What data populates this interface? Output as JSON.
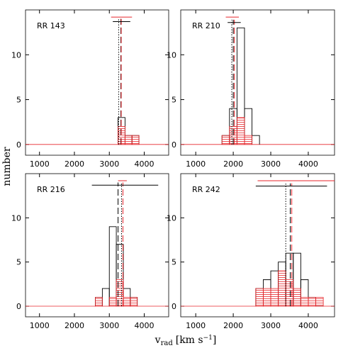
{
  "ylabel": "number",
  "xlabel": [
    "v",
    "rad",
    "[km s",
    "−1",
    "]"
  ],
  "chart_data": [
    {
      "type": "histogram",
      "title": "RR 143",
      "bins": [
        3250,
        3450,
        3650,
        3850
      ],
      "series": [
        {
          "color": "#000000",
          "values": [
            3,
            1,
            1
          ]
        },
        {
          "color": "#e8262b",
          "values": [
            2,
            1,
            1
          ],
          "hatch": true
        }
      ],
      "lines": [
        {
          "value": 3330,
          "color": "#000000",
          "style": "dashed"
        },
        {
          "value": 3340,
          "color": "#e8262b",
          "style": "dashed"
        },
        {
          "value": 3270,
          "color": "#000000",
          "style": "dotted"
        }
      ],
      "ranges": [
        {
          "low": 3100,
          "high": 3600,
          "y": 13.7,
          "color": "#000000"
        },
        {
          "low": 3050,
          "high": 3650,
          "y": 14.2,
          "color": "#e8262b"
        }
      ],
      "xlim": [
        600,
        4700
      ],
      "ylim": [
        -1.2,
        15
      ],
      "xticks": [
        1000,
        2000,
        3000,
        4000
      ],
      "yticks": [
        0,
        5,
        10
      ]
    },
    {
      "type": "histogram",
      "title": "RR 210",
      "bins": [
        1700,
        1900,
        2100,
        2300,
        2500,
        2700
      ],
      "series": [
        {
          "color": "#000000",
          "values": [
            1,
            4,
            13,
            4,
            1
          ]
        },
        {
          "color": "#e8262b",
          "values": [
            1,
            2,
            3,
            1,
            0
          ],
          "hatch": true
        }
      ],
      "lines": [
        {
          "value": 2000,
          "color": "#000000",
          "style": "dashed"
        },
        {
          "value": 2030,
          "color": "#e8262b",
          "style": "dashed"
        },
        {
          "value": 1960,
          "color": "#000000",
          "style": "dotted"
        }
      ],
      "ranges": [
        {
          "low": 1850,
          "high": 2200,
          "y": 13.6,
          "color": "#000000"
        },
        {
          "low": 1800,
          "high": 2150,
          "y": 14.2,
          "color": "#e8262b"
        }
      ],
      "xlim": [
        600,
        4700
      ],
      "ylim": [
        -1.2,
        15
      ],
      "xticks": [
        1000,
        2000,
        3000,
        4000
      ],
      "yticks": [
        0,
        5,
        10
      ]
    },
    {
      "type": "histogram",
      "title": "RR 216",
      "bins": [
        2600,
        2800,
        3000,
        3200,
        3400,
        3600,
        3800
      ],
      "series": [
        {
          "color": "#000000",
          "values": [
            1,
            2,
            9,
            7,
            2,
            1
          ]
        },
        {
          "color": "#e8262b",
          "values": [
            1,
            0,
            1,
            3,
            1,
            1
          ],
          "hatch": true
        }
      ],
      "lines": [
        {
          "value": 3250,
          "color": "#000000",
          "style": "dashed"
        },
        {
          "value": 3390,
          "color": "#e8262b",
          "style": "dashed"
        },
        {
          "value": 3350,
          "color": "#000000",
          "style": "dotted"
        }
      ],
      "ranges": [
        {
          "low": 2500,
          "high": 4400,
          "y": 13.7,
          "color": "#000000"
        },
        {
          "low": 3250,
          "high": 3500,
          "y": 14.2,
          "color": "#e8262b"
        }
      ],
      "xlim": [
        600,
        4700
      ],
      "ylim": [
        -1.2,
        15
      ],
      "xticks": [
        1000,
        2000,
        3000,
        4000
      ],
      "yticks": [
        0,
        5,
        10
      ]
    },
    {
      "type": "histogram",
      "title": "RR 242",
      "bins": [
        2600,
        2800,
        3000,
        3200,
        3400,
        3600,
        3800,
        4000,
        4200,
        4400
      ],
      "series": [
        {
          "color": "#000000",
          "values": [
            2,
            3,
            4,
            5,
            6,
            6,
            3,
            1,
            0
          ]
        },
        {
          "color": "#e8262b",
          "values": [
            2,
            2,
            2,
            4,
            3,
            2,
            1,
            1,
            1
          ],
          "hatch": true
        }
      ],
      "lines": [
        {
          "value": 3520,
          "color": "#000000",
          "style": "dashed"
        },
        {
          "value": 3560,
          "color": "#e8262b",
          "style": "dashed"
        },
        {
          "value": 3400,
          "color": "#000000",
          "style": "dotted"
        }
      ],
      "ranges": [
        {
          "low": 2600,
          "high": 4500,
          "y": 13.6,
          "color": "#000000"
        },
        {
          "low": 2650,
          "high": 4700,
          "y": 14.2,
          "color": "#e8262b"
        }
      ],
      "xlim": [
        600,
        4700
      ],
      "ylim": [
        -1.2,
        15
      ],
      "xticks": [
        1000,
        2000,
        3000,
        4000
      ],
      "yticks": [
        0,
        5,
        10
      ]
    }
  ]
}
